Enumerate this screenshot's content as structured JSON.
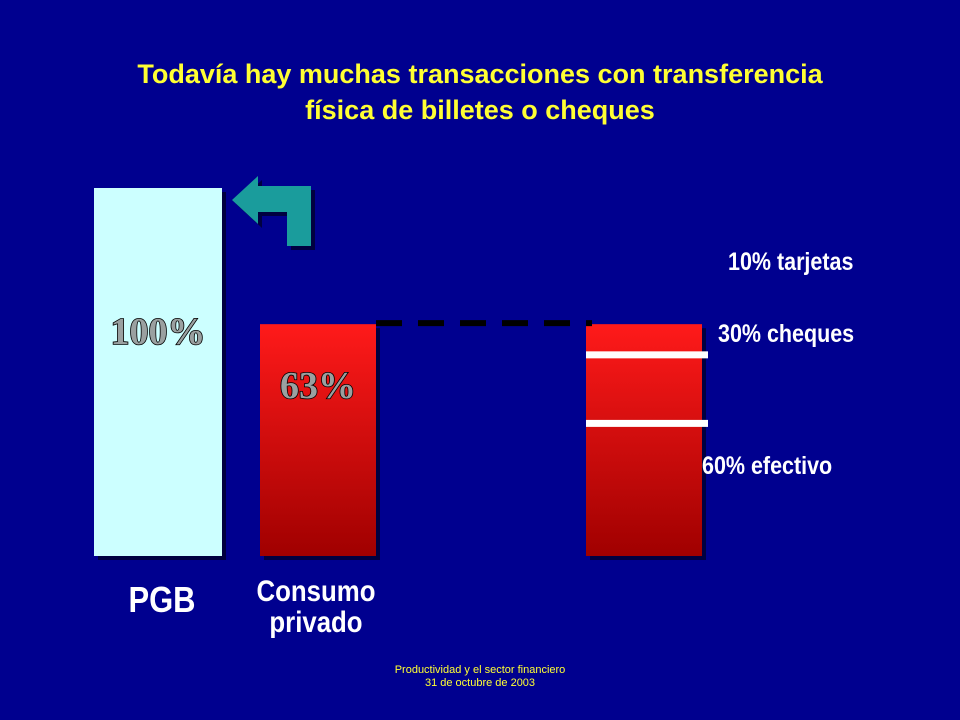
{
  "title": {
    "line1": "Todavía hay muchas transacciones con transferencia",
    "line2": "física de billetes o cheques"
  },
  "footer": {
    "line1": "Productividad y el sector financiero",
    "line2": "31 de octubre de 2003"
  },
  "colors": {
    "background": "#00008f",
    "title": "#ffff33",
    "footer": "#ffff33",
    "labels": "#ffffff",
    "pgb_bar": "#ccffff",
    "red_bar_top": "#ff1a1a",
    "red_bar_bottom": "#a00000",
    "arrow": "#1a9c9c",
    "value_label_fill": "#9aa0a0"
  },
  "icons": {
    "arrow": "turn-left-arrow-icon"
  },
  "chart_data": {
    "type": "bar",
    "title": "Todavía hay muchas transacciones con transferencia física de billetes o cheques",
    "xlabel": "",
    "ylabel": "",
    "ylim": [
      0,
      100
    ],
    "grid": false,
    "categories": [
      "PGB",
      "Consumo privado",
      ""
    ],
    "values": [
      100,
      63,
      63
    ],
    "value_labels": [
      "100%",
      "63%",
      ""
    ],
    "category_label_lines": [
      [
        "PGB"
      ],
      [
        "Consumo",
        "privado"
      ],
      []
    ],
    "breakdown": {
      "of_category": "Consumo privado",
      "segments": [
        {
          "name": "tarjetas",
          "share": 10,
          "label": "10% tarjetas"
        },
        {
          "name": "cheques",
          "share": 30,
          "label": "30% cheques"
        },
        {
          "name": "efectivo",
          "share": 60,
          "label": "60% efectivo"
        }
      ]
    }
  }
}
